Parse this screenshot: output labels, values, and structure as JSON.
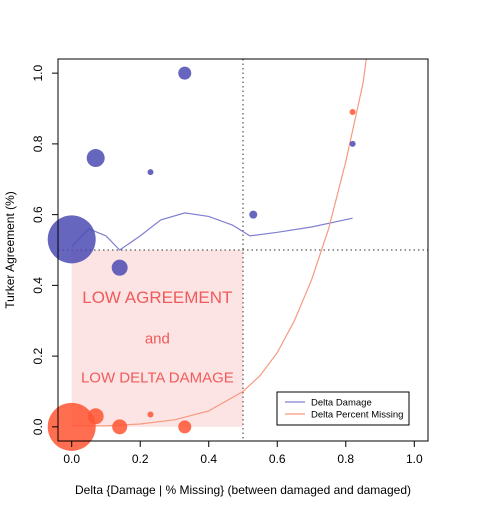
{
  "chart_data": {
    "type": "scatter",
    "title": "",
    "xlabel": "Delta {Damage | % Missing} (between damaged and damaged)",
    "ylabel": "Turker Agreement (%)",
    "xlim": [
      -0.04,
      1.04
    ],
    "ylim": [
      -0.04,
      1.04
    ],
    "xticks": [
      0.0,
      0.2,
      0.4,
      0.6,
      0.8,
      1.0
    ],
    "yticks": [
      0.0,
      0.2,
      0.4,
      0.6,
      0.8,
      1.0
    ],
    "xtick_labels": [
      "0.0",
      "0.2",
      "0.4",
      "0.6",
      "0.8",
      "1.0"
    ],
    "ytick_labels": [
      "0.0",
      "0.2",
      "0.4",
      "0.6",
      "0.8",
      "1.0"
    ],
    "grid": false,
    "reference_lines": {
      "vertical_x": 0.5,
      "horizontal_y": 0.5
    },
    "shaded_region": {
      "x": [
        0,
        0.5
      ],
      "y": [
        0,
        0.5
      ],
      "color": "#fde4e4"
    },
    "annotations": [
      {
        "text": "LOW AGREEMENT",
        "x": 0.25,
        "y": 0.35,
        "size": "large"
      },
      {
        "text": "and",
        "x": 0.25,
        "y": 0.235,
        "size": "medium"
      },
      {
        "text": "LOW DELTA DAMAGE",
        "x": 0.25,
        "y": 0.125,
        "size": "medium"
      }
    ],
    "annotation_color": "#f05a5a",
    "legend": {
      "placement": "bottom-right",
      "entries": [
        {
          "label": "Delta Damage",
          "color": "#8080d0"
        },
        {
          "label": "Delta Percent Missing",
          "color": "#f59a80"
        }
      ]
    },
    "series": [
      {
        "color": "#4b4bb4",
        "line_color": "#8080d0",
        "points": [
          {
            "x": 0.0,
            "y": 0.53,
            "size": 24
          },
          {
            "x": 0.07,
            "y": 0.76,
            "size": 9
          },
          {
            "x": 0.14,
            "y": 0.45,
            "size": 8
          },
          {
            "x": 0.23,
            "y": 0.72,
            "size": 3
          },
          {
            "x": 0.33,
            "y": 1.0,
            "size": 6.5
          },
          {
            "x": 0.53,
            "y": 0.6,
            "size": 4
          },
          {
            "x": 0.82,
            "y": 0.8,
            "size": 3
          }
        ],
        "line": [
          {
            "x": 0.0,
            "y": 0.51
          },
          {
            "x": 0.05,
            "y": 0.56
          },
          {
            "x": 0.1,
            "y": 0.54
          },
          {
            "x": 0.14,
            "y": 0.5
          },
          {
            "x": 0.2,
            "y": 0.54
          },
          {
            "x": 0.26,
            "y": 0.585
          },
          {
            "x": 0.33,
            "y": 0.605
          },
          {
            "x": 0.4,
            "y": 0.595
          },
          {
            "x": 0.47,
            "y": 0.57
          },
          {
            "x": 0.52,
            "y": 0.54
          },
          {
            "x": 0.6,
            "y": 0.55
          },
          {
            "x": 0.7,
            "y": 0.565
          },
          {
            "x": 0.82,
            "y": 0.59
          }
        ]
      },
      {
        "color": "#ff5533",
        "line_color": "#f59a80",
        "points": [
          {
            "x": 0.0,
            "y": 0.0,
            "size": 24
          },
          {
            "x": 0.07,
            "y": 0.03,
            "size": 8
          },
          {
            "x": 0.14,
            "y": 0.0,
            "size": 7.5
          },
          {
            "x": 0.23,
            "y": 0.035,
            "size": 3
          },
          {
            "x": 0.33,
            "y": 0.0,
            "size": 6.5
          },
          {
            "x": 0.82,
            "y": 0.89,
            "size": 3
          }
        ],
        "line": [
          {
            "x": 0.0,
            "y": 0.003
          },
          {
            "x": 0.1,
            "y": 0.003
          },
          {
            "x": 0.2,
            "y": 0.008
          },
          {
            "x": 0.3,
            "y": 0.02
          },
          {
            "x": 0.4,
            "y": 0.045
          },
          {
            "x": 0.5,
            "y": 0.1
          },
          {
            "x": 0.55,
            "y": 0.145
          },
          {
            "x": 0.6,
            "y": 0.21
          },
          {
            "x": 0.65,
            "y": 0.3
          },
          {
            "x": 0.7,
            "y": 0.415
          },
          {
            "x": 0.75,
            "y": 0.56
          },
          {
            "x": 0.8,
            "y": 0.75
          },
          {
            "x": 0.85,
            "y": 0.97
          },
          {
            "x": 0.86,
            "y": 1.04
          }
        ]
      }
    ]
  }
}
